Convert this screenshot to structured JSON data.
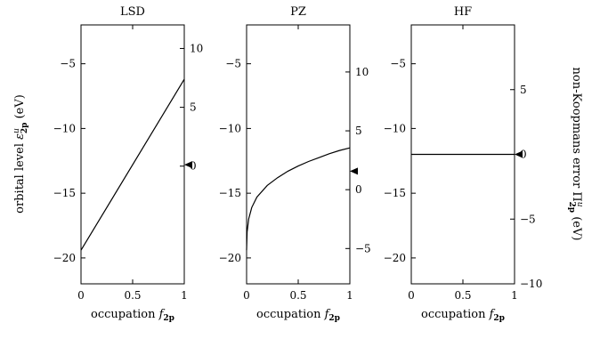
{
  "chart_data": {
    "type": "line",
    "shared": {
      "xlabel": "occupation f",
      "xlabel_sub": "2p",
      "ylabel_left": "orbital level ε",
      "ylabel_left_sup": "u",
      "ylabel_left_sub": "2p",
      "ylabel_left_unit": "(eV)",
      "ylabel_right": "non-Koopmans error Π",
      "ylabel_right_sup": "u",
      "ylabel_right_sub": "2p",
      "ylabel_right_unit": "(eV)",
      "xlim": [
        0,
        1
      ],
      "ylim_left": [
        -22,
        -2
      ],
      "x_ticks": [
        0,
        0.5,
        1
      ],
      "x_tick_labels": [
        "0",
        "0.5",
        "1"
      ],
      "y_ticks_left": [
        -20,
        -15,
        -10,
        -5
      ],
      "y_tick_labels_left": [
        "−20",
        "−15",
        "−10",
        "−5"
      ],
      "y_ticks_right": [
        -5,
        0,
        5,
        10
      ],
      "y_tick_labels_right": [
        "−5",
        "0",
        "5",
        "10"
      ],
      "grid": false
    },
    "panels": [
      {
        "title": "LSD",
        "zero_marker_level": -12.8,
        "right_ylim": [
          -10,
          12
        ],
        "right_ticks_shown": [
          0,
          5,
          10
        ],
        "right_tick_labels": [
          "0",
          "5",
          "10"
        ],
        "x": [
          0,
          1
        ],
        "y": [
          -19.4,
          -6.2
        ]
      },
      {
        "title": "PZ",
        "zero_marker_level": -13.3,
        "right_ylim": [
          -8,
          14
        ],
        "right_ticks_shown": [
          -5,
          0,
          5,
          10
        ],
        "right_tick_labels": [
          "−5",
          "0",
          "5",
          "10"
        ],
        "x": [
          0,
          0.005,
          0.02,
          0.05,
          0.1,
          0.2,
          0.3,
          0.4,
          0.5,
          0.6,
          0.7,
          0.8,
          0.9,
          1.0
        ],
        "y": [
          -19.4,
          -18.0,
          -17.0,
          -16.1,
          -15.3,
          -14.4,
          -13.8,
          -13.3,
          -12.9,
          -12.55,
          -12.25,
          -11.95,
          -11.7,
          -11.5
        ]
      },
      {
        "title": "HF",
        "zero_marker_level": -12.0,
        "right_ylim": [
          -10,
          10
        ],
        "right_ticks_shown": [
          -10,
          -5,
          0,
          5
        ],
        "right_tick_labels": [
          "−10",
          "−5",
          "0",
          "5"
        ],
        "x": [
          0,
          1
        ],
        "y": [
          -12.0,
          -12.0
        ]
      }
    ]
  }
}
